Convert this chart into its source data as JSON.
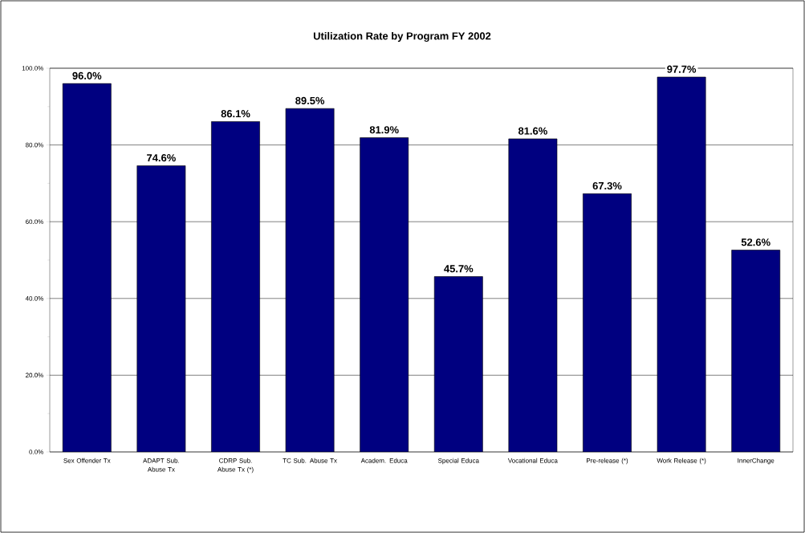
{
  "chart_data": {
    "type": "bar",
    "title": "Utilization Rate by Program FY 2002",
    "categories": [
      "Sex Offender Tx",
      "ADAPT Sub. Abuse Tx",
      "CDRP Sub. Abuse Tx (*)",
      "TC Sub. Abuse Tx",
      "Academ. Educa",
      "Special Educa",
      "Vocational Educa",
      "Pre-release (*)",
      "Work Release (*)",
      "InnerChange"
    ],
    "values": [
      96.0,
      74.6,
      86.1,
      89.5,
      81.9,
      45.7,
      81.6,
      67.3,
      97.7,
      52.6
    ],
    "value_labels": [
      "96.0%",
      "74.6%",
      "86.1%",
      "89.5%",
      "81.9%",
      "45.7%",
      "81.6%",
      "67.3%",
      "97.7%",
      "52.6%"
    ],
    "color": "#000080",
    "ylim": [
      0,
      100
    ],
    "yticks": [
      {
        "value": 0,
        "label": "0.0%"
      },
      {
        "value": 20,
        "label": "20.0%"
      },
      {
        "value": 40,
        "label": "40.0%"
      },
      {
        "value": 60,
        "label": "60.0%"
      },
      {
        "value": 80,
        "label": "80.0%"
      },
      {
        "value": 100,
        "label": "100.0%"
      }
    ],
    "grid": "y"
  }
}
